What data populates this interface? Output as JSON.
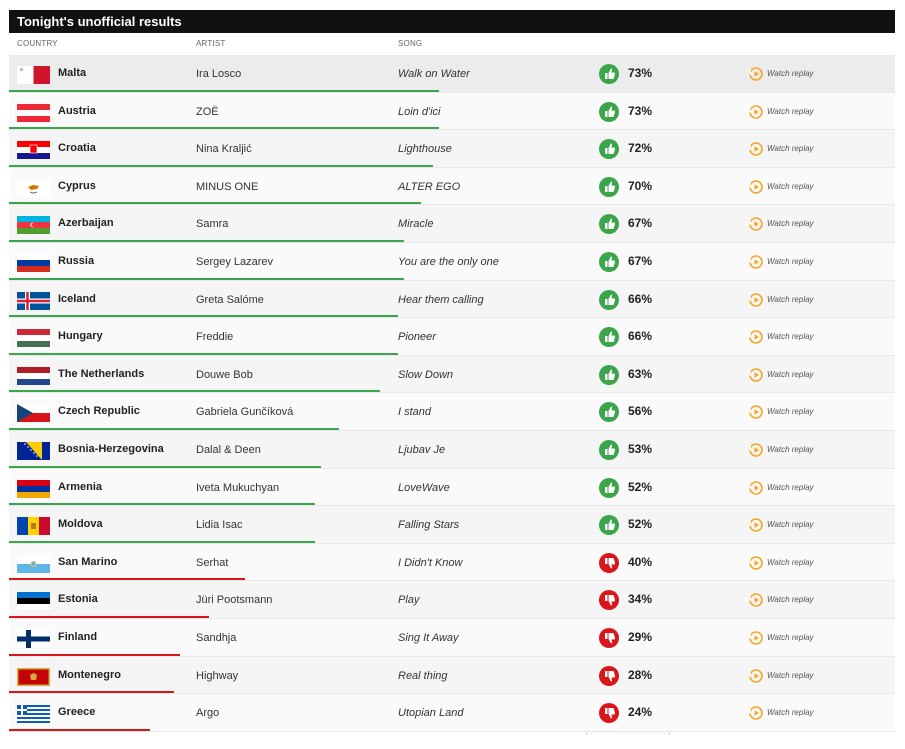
{
  "title": "Tonight's unofficial results",
  "headers": {
    "country": "COUNTRY",
    "artist": "ARTIST",
    "song": "SONG"
  },
  "replay_label": "Watch replay",
  "colors": {
    "positive": "#3aa54a",
    "negative": "#d9161c",
    "replay_accent": "#f5a623",
    "titlebar": "#111111"
  },
  "rows": [
    {
      "country": "Malta",
      "artist": "Ira Losco",
      "song": "Walk on Water",
      "percent": "73%",
      "value": 73,
      "sentiment": "positive",
      "icon": "thumbs-up-icon",
      "flag": "malta"
    },
    {
      "country": "Austria",
      "artist": "ZOË",
      "song": "Loin d'ici",
      "percent": "73%",
      "value": 73,
      "sentiment": "positive",
      "icon": "thumbs-up-icon",
      "flag": "austria"
    },
    {
      "country": "Croatia",
      "artist": "Nina Kraljić",
      "song": "Lighthouse",
      "percent": "72%",
      "value": 72,
      "sentiment": "positive",
      "icon": "thumbs-up-icon",
      "flag": "croatia"
    },
    {
      "country": "Cyprus",
      "artist": "MINUS ONE",
      "song": "ALTER EGO",
      "percent": "70%",
      "value": 70,
      "sentiment": "positive",
      "icon": "thumbs-up-icon",
      "flag": "cyprus"
    },
    {
      "country": "Azerbaijan",
      "artist": "Samra",
      "song": "Miracle",
      "percent": "67%",
      "value": 67,
      "sentiment": "positive",
      "icon": "thumbs-up-icon",
      "flag": "azerbaijan"
    },
    {
      "country": "Russia",
      "artist": "Sergey Lazarev",
      "song": "You are the only one",
      "percent": "67%",
      "value": 67,
      "sentiment": "positive",
      "icon": "thumbs-up-icon",
      "flag": "russia"
    },
    {
      "country": "Iceland",
      "artist": "Greta Salóme",
      "song": "Hear them calling",
      "percent": "66%",
      "value": 66,
      "sentiment": "positive",
      "icon": "thumbs-up-icon",
      "flag": "iceland"
    },
    {
      "country": "Hungary",
      "artist": "Freddie",
      "song": "Pioneer",
      "percent": "66%",
      "value": 66,
      "sentiment": "positive",
      "icon": "thumbs-up-icon",
      "flag": "hungary"
    },
    {
      "country": "The Netherlands",
      "artist": "Douwe Bob",
      "song": "Slow Down",
      "percent": "63%",
      "value": 63,
      "sentiment": "positive",
      "icon": "thumbs-up-icon",
      "flag": "netherlands"
    },
    {
      "country": "Czech Republic",
      "artist": "Gabriela Gunčíková",
      "song": "I stand",
      "percent": "56%",
      "value": 56,
      "sentiment": "positive",
      "icon": "thumbs-up-icon",
      "flag": "czech"
    },
    {
      "country": "Bosnia-Herzegovina",
      "artist": "Dalal & Deen",
      "song": "Ljubav Je",
      "percent": "53%",
      "value": 53,
      "sentiment": "positive",
      "icon": "thumbs-up-icon",
      "flag": "bosnia"
    },
    {
      "country": "Armenia",
      "artist": "Iveta Mukuchyan",
      "song": "LoveWave",
      "percent": "52%",
      "value": 52,
      "sentiment": "positive",
      "icon": "thumbs-up-icon",
      "flag": "armenia"
    },
    {
      "country": "Moldova",
      "artist": "Lidia Isac",
      "song": "Falling Stars",
      "percent": "52%",
      "value": 52,
      "sentiment": "positive",
      "icon": "thumbs-up-icon",
      "flag": "moldova"
    },
    {
      "country": "San Marino",
      "artist": "Serhat",
      "song": "I Didn't Know",
      "percent": "40%",
      "value": 40,
      "sentiment": "negative",
      "icon": "thumbs-down-icon",
      "flag": "sanmarino"
    },
    {
      "country": "Estonia",
      "artist": "Jüri Pootsmann",
      "song": "Play",
      "percent": "34%",
      "value": 34,
      "sentiment": "negative",
      "icon": "thumbs-down-icon",
      "flag": "estonia"
    },
    {
      "country": "Finland",
      "artist": "Sandhja",
      "song": "Sing It Away",
      "percent": "29%",
      "value": 29,
      "sentiment": "negative",
      "icon": "thumbs-down-icon",
      "flag": "finland"
    },
    {
      "country": "Montenegro",
      "artist": "Highway",
      "song": "Real thing",
      "percent": "28%",
      "value": 28,
      "sentiment": "negative",
      "icon": "thumbs-down-icon",
      "flag": "montenegro"
    },
    {
      "country": "Greece",
      "artist": "Argo",
      "song": "Utopian Land",
      "percent": "24%",
      "value": 24,
      "sentiment": "negative",
      "icon": "thumbs-down-icon",
      "flag": "greece"
    }
  ]
}
